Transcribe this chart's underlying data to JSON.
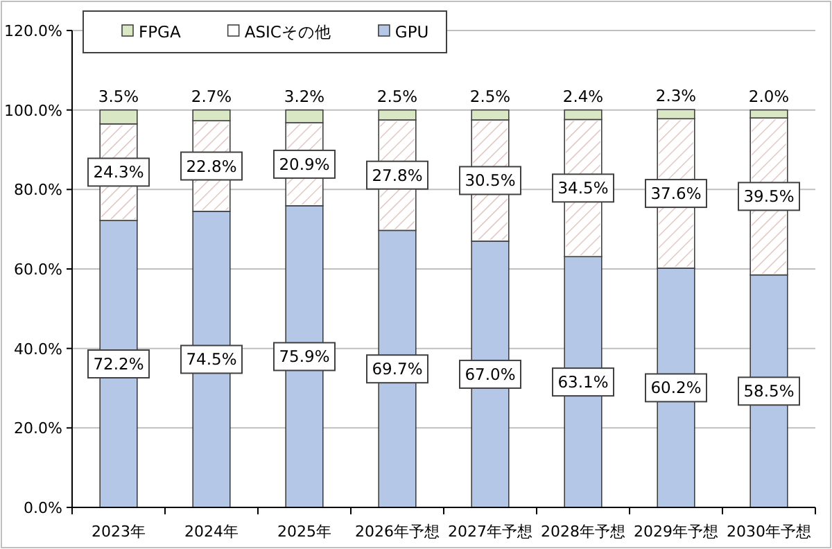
{
  "chart_data": {
    "type": "bar",
    "stacked": true,
    "categories": [
      "2023年",
      "2024年",
      "2025年",
      "2026年予想",
      "2027年予想",
      "2028年予想",
      "2029年予想",
      "2030年予想"
    ],
    "series": [
      {
        "name": "GPU",
        "color": "#b4c7e7",
        "values": [
          72.2,
          74.5,
          75.9,
          69.7,
          67.0,
          63.1,
          60.2,
          58.5
        ],
        "value_labels": [
          "72.2%",
          "74.5%",
          "75.9%",
          "69.7%",
          "67.0%",
          "63.1%",
          "60.2%",
          "58.5%"
        ]
      },
      {
        "name": "ASICその他",
        "color": "#ffffff",
        "values": [
          24.3,
          22.8,
          20.9,
          27.8,
          30.5,
          34.5,
          37.6,
          39.5
        ],
        "value_labels": [
          "24.3%",
          "22.8%",
          "20.9%",
          "27.8%",
          "30.5%",
          "34.5%",
          "37.6%",
          "39.5%"
        ]
      },
      {
        "name": "FPGA",
        "color": "#d9e7c5",
        "values": [
          3.5,
          2.7,
          3.2,
          2.5,
          2.5,
          2.4,
          2.3,
          2.0
        ],
        "value_labels": [
          "3.5%",
          "2.7%",
          "3.2%",
          "2.5%",
          "2.5%",
          "2.4%",
          "2.3%",
          "2.0%"
        ]
      }
    ],
    "ylim": [
      0,
      120
    ],
    "yticks": [
      {
        "value": 0,
        "label": "0.0%"
      },
      {
        "value": 20,
        "label": "20.0%"
      },
      {
        "value": 40,
        "label": "40.0%"
      },
      {
        "value": 60,
        "label": "60.0%"
      },
      {
        "value": 80,
        "label": "80.0%"
      },
      {
        "value": 100,
        "label": "100.0%"
      },
      {
        "value": 120,
        "label": "120.0%"
      }
    ],
    "grid": "y",
    "legend": "top left"
  }
}
